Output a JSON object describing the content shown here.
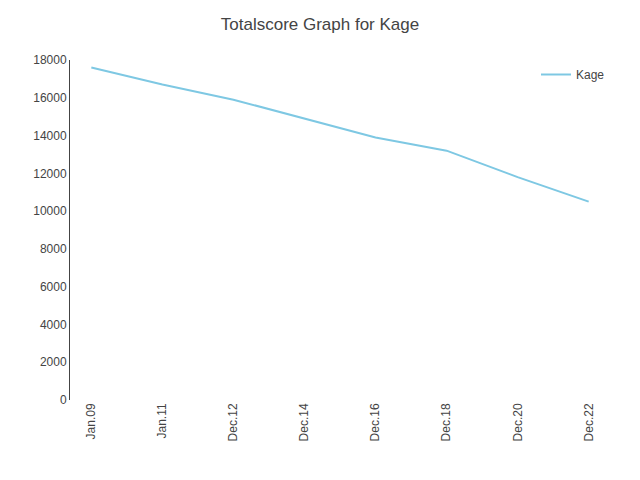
{
  "chart_data": {
    "type": "line",
    "title": "Totalscore Graph for Kage",
    "categories": [
      "Jan.09",
      "Jan.11",
      "Dec.12",
      "Dec.14",
      "Dec.16",
      "Dec.18",
      "Dec.20",
      "Dec.22"
    ],
    "series": [
      {
        "name": "Kage",
        "color": "#7EC8E3",
        "values": [
          17600,
          16700,
          15900,
          14900,
          13900,
          13200,
          11800,
          10500
        ]
      }
    ],
    "ylim": [
      0,
      18000
    ],
    "yticks": [
      0,
      2000,
      4000,
      6000,
      8000,
      10000,
      12000,
      14000,
      16000,
      18000
    ],
    "grid": false,
    "legend": "upper right"
  }
}
